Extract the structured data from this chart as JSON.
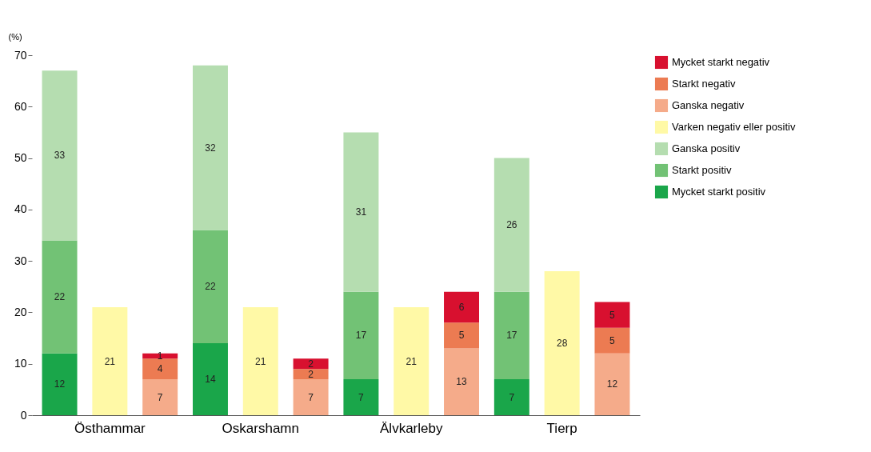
{
  "chart_data": {
    "type": "bar",
    "ylabel": "(%)",
    "stacked": true,
    "data_labels": true,
    "legend": "right",
    "grid": false,
    "categories": [
      null,
      "Östhammar",
      null,
      null,
      "Oskarshamn",
      null,
      null,
      "Älvkarleby",
      null,
      null,
      "Tierp",
      null
    ],
    "ylim": [
      0,
      70
    ],
    "yticks": [
      0,
      10,
      20,
      30,
      40,
      50,
      60,
      70
    ],
    "series": [
      {
        "name": "Mycket starkt positiv",
        "color": "#1aa64a",
        "values": [
          12,
          null,
          null,
          14,
          null,
          null,
          7,
          null,
          null,
          7,
          null,
          null
        ]
      },
      {
        "name": "Starkt positiv",
        "color": "#72c275",
        "values": [
          22,
          null,
          null,
          22,
          null,
          null,
          17,
          null,
          null,
          17,
          null,
          null
        ]
      },
      {
        "name": "Ganska positiv",
        "color": "#b5ddb0",
        "values": [
          33,
          null,
          null,
          32,
          null,
          null,
          31,
          null,
          null,
          26,
          null,
          null
        ]
      },
      {
        "name": "Varken negativ eller positiv",
        "color": "#fff9a6",
        "values": [
          null,
          21,
          null,
          null,
          21,
          null,
          null,
          21,
          null,
          null,
          28,
          null
        ]
      },
      {
        "name": "Ganska negativ",
        "color": "#f5ab8a",
        "values": [
          null,
          null,
          7,
          null,
          null,
          7,
          null,
          null,
          13,
          null,
          null,
          12
        ]
      },
      {
        "name": "Starkt negativ",
        "color": "#ec7b52",
        "values": [
          null,
          null,
          4,
          null,
          null,
          2,
          null,
          null,
          5,
          null,
          null,
          5
        ]
      },
      {
        "name": "Mycket starkt negativ",
        "color": "#d8102f",
        "values": [
          null,
          null,
          1,
          null,
          null,
          2,
          null,
          null,
          6,
          null,
          null,
          5
        ]
      }
    ]
  }
}
